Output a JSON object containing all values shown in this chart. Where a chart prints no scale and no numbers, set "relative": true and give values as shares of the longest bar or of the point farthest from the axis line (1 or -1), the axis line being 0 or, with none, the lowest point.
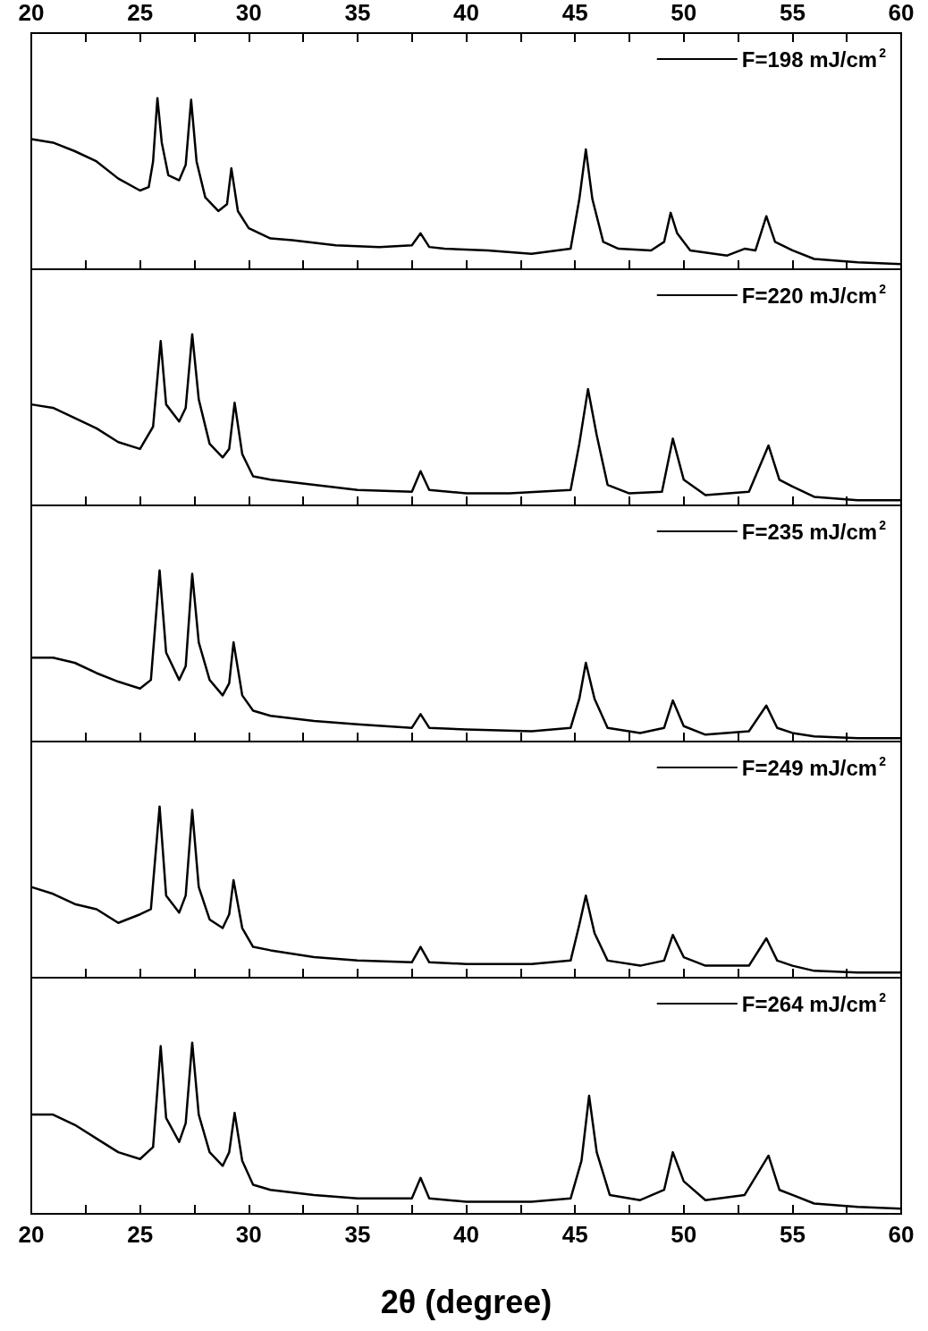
{
  "chart_data": [
    {
      "type": "line",
      "relative": true,
      "legend": "top right",
      "tick_labels": false,
      "xlim": [
        20,
        60
      ],
      "xticks": [
        20,
        {
          "value": 22.5,
          "label": null
        },
        25,
        {
          "value": 27.5,
          "label": null
        },
        30,
        {
          "value": 32.5,
          "label": null
        },
        35,
        {
          "value": 37.5,
          "label": null
        },
        40,
        {
          "value": 42.5,
          "label": null
        },
        45,
        {
          "value": 47.5,
          "label": null
        },
        50,
        {
          "value": 52.5,
          "label": null
        },
        55,
        {
          "value": 57.5,
          "label": null
        },
        60
      ],
      "x2lim": [
        20,
        60
      ],
      "x2ticks": [
        20,
        {
          "value": 22.5,
          "label": null
        },
        25,
        {
          "value": 27.5,
          "label": null
        },
        30,
        {
          "value": 32.5,
          "label": null
        },
        35,
        {
          "value": 37.5,
          "label": null
        },
        40,
        {
          "value": 42.5,
          "label": null
        },
        45,
        {
          "value": 47.5,
          "label": null
        },
        50,
        {
          "value": 52.5,
          "label": null
        },
        55,
        {
          "value": 57.5,
          "label": null
        },
        60
      ],
      "series": [
        {
          "name": "F=198 mJ/cm$^{2}$",
          "color": "#000000",
          "x": [
            20,
            21,
            22,
            23,
            24,
            25,
            25.4,
            25.6,
            25.8,
            26,
            26.3,
            26.8,
            27.1,
            27.35,
            27.6,
            28,
            28.6,
            29,
            29.2,
            29.5,
            30,
            31,
            32,
            34,
            36,
            37.5,
            37.9,
            38.3,
            39,
            41,
            43,
            44.8,
            45.2,
            45.5,
            45.8,
            46.3,
            47,
            48.5,
            49.1,
            49.4,
            49.7,
            50.3,
            52,
            52.8,
            53.3,
            53.8,
            54.2,
            55,
            56,
            58,
            60
          ],
          "values": [
            0.76,
            0.74,
            0.69,
            0.63,
            0.53,
            0.46,
            0.48,
            0.63,
            1.0,
            0.74,
            0.55,
            0.52,
            0.61,
            0.99,
            0.63,
            0.42,
            0.34,
            0.38,
            0.59,
            0.34,
            0.24,
            0.18,
            0.17,
            0.14,
            0.13,
            0.14,
            0.21,
            0.13,
            0.12,
            0.11,
            0.09,
            0.12,
            0.41,
            0.7,
            0.41,
            0.16,
            0.12,
            0.11,
            0.16,
            0.33,
            0.21,
            0.11,
            0.08,
            0.12,
            0.11,
            0.31,
            0.16,
            0.11,
            0.06,
            0.04,
            0.03
          ]
        }
      ]
    },
    {
      "type": "line",
      "relative": true,
      "legend": "top right",
      "tick_labels": false,
      "xlim": [
        20,
        60
      ],
      "xticks": [
        20,
        {
          "value": 22.5,
          "label": null
        },
        25,
        {
          "value": 27.5,
          "label": null
        },
        30,
        {
          "value": 32.5,
          "label": null
        },
        35,
        {
          "value": 37.5,
          "label": null
        },
        40,
        {
          "value": 42.5,
          "label": null
        },
        45,
        {
          "value": 47.5,
          "label": null
        },
        50,
        {
          "value": 52.5,
          "label": null
        },
        55,
        {
          "value": 57.5,
          "label": null
        },
        60
      ],
      "series": [
        {
          "name": "F=220 mJ/cm$^{2}$",
          "color": "#000000",
          "x": [
            20,
            21,
            22,
            23,
            24,
            25,
            25.6,
            25.95,
            26.2,
            26.8,
            27.1,
            27.4,
            27.7,
            28.2,
            28.8,
            29.1,
            29.35,
            29.7,
            30.2,
            31,
            33,
            35,
            37.5,
            37.9,
            38.3,
            40,
            42,
            44.8,
            45.2,
            45.6,
            46,
            46.5,
            47.5,
            49,
            49.5,
            50,
            51,
            53,
            53.9,
            54.4,
            55,
            56,
            58,
            60
          ],
          "values": [
            0.59,
            0.57,
            0.51,
            0.45,
            0.37,
            0.33,
            0.46,
            0.96,
            0.59,
            0.49,
            0.57,
            1.0,
            0.62,
            0.36,
            0.28,
            0.33,
            0.6,
            0.3,
            0.17,
            0.15,
            0.12,
            0.09,
            0.08,
            0.2,
            0.09,
            0.07,
            0.07,
            0.09,
            0.36,
            0.68,
            0.41,
            0.12,
            0.07,
            0.08,
            0.39,
            0.15,
            0.06,
            0.08,
            0.35,
            0.15,
            0.11,
            0.05,
            0.03,
            0.03
          ]
        }
      ]
    },
    {
      "type": "line",
      "relative": true,
      "legend": "top right",
      "tick_labels": false,
      "xlim": [
        20,
        60
      ],
      "xticks": [
        20,
        {
          "value": 22.5,
          "label": null
        },
        25,
        {
          "value": 27.5,
          "label": null
        },
        30,
        {
          "value": 32.5,
          "label": null
        },
        35,
        {
          "value": 37.5,
          "label": null
        },
        40,
        {
          "value": 42.5,
          "label": null
        },
        45,
        {
          "value": 47.5,
          "label": null
        },
        50,
        {
          "value": 52.5,
          "label": null
        },
        55,
        {
          "value": 57.5,
          "label": null
        },
        60
      ],
      "series": [
        {
          "name": "F=235 mJ/cm$^{2}$",
          "color": "#000000",
          "x": [
            20,
            21,
            22,
            23,
            24,
            25,
            25.5,
            25.9,
            26.2,
            26.8,
            27.1,
            27.4,
            27.7,
            28.2,
            28.8,
            29.1,
            29.3,
            29.7,
            30.2,
            31,
            33,
            35,
            37.5,
            37.9,
            38.3,
            40,
            43,
            44.8,
            45.2,
            45.5,
            45.9,
            46.5,
            48,
            49.1,
            49.5,
            50,
            51,
            53,
            53.8,
            54.3,
            55,
            56,
            58,
            60
          ],
          "values": [
            0.49,
            0.49,
            0.46,
            0.4,
            0.35,
            0.31,
            0.36,
            1.0,
            0.52,
            0.36,
            0.44,
            0.98,
            0.58,
            0.36,
            0.27,
            0.34,
            0.58,
            0.27,
            0.18,
            0.15,
            0.12,
            0.1,
            0.08,
            0.16,
            0.08,
            0.07,
            0.06,
            0.08,
            0.25,
            0.46,
            0.25,
            0.08,
            0.05,
            0.08,
            0.24,
            0.09,
            0.04,
            0.06,
            0.21,
            0.08,
            0.05,
            0.03,
            0.02,
            0.02
          ]
        }
      ]
    },
    {
      "type": "line",
      "relative": true,
      "legend": "top right",
      "tick_labels": false,
      "xlim": [
        20,
        60
      ],
      "xticks": [
        20,
        {
          "value": 22.5,
          "label": null
        },
        25,
        {
          "value": 27.5,
          "label": null
        },
        30,
        {
          "value": 32.5,
          "label": null
        },
        35,
        {
          "value": 37.5,
          "label": null
        },
        40,
        {
          "value": 42.5,
          "label": null
        },
        45,
        {
          "value": 47.5,
          "label": null
        },
        50,
        {
          "value": 52.5,
          "label": null
        },
        55,
        {
          "value": 57.5,
          "label": null
        },
        60
      ],
      "series": [
        {
          "name": "F=249 mJ/cm$^{2}$",
          "color": "#000000",
          "x": [
            20,
            21,
            22,
            23,
            24,
            25,
            25.5,
            25.9,
            26.2,
            26.8,
            27.1,
            27.4,
            27.7,
            28.2,
            28.8,
            29.1,
            29.3,
            29.7,
            30.2,
            31,
            33,
            35,
            37.5,
            37.9,
            38.3,
            40,
            43,
            44.8,
            45.2,
            45.5,
            45.9,
            46.5,
            48,
            49.1,
            49.5,
            50,
            51,
            53,
            53.8,
            54.3,
            55,
            56,
            58,
            60
          ],
          "values": [
            0.53,
            0.49,
            0.43,
            0.4,
            0.32,
            0.37,
            0.4,
            1.0,
            0.48,
            0.38,
            0.48,
            0.98,
            0.53,
            0.34,
            0.29,
            0.37,
            0.57,
            0.29,
            0.18,
            0.16,
            0.12,
            0.1,
            0.09,
            0.18,
            0.09,
            0.08,
            0.08,
            0.1,
            0.31,
            0.48,
            0.26,
            0.1,
            0.07,
            0.1,
            0.25,
            0.12,
            0.07,
            0.07,
            0.23,
            0.1,
            0.07,
            0.04,
            0.03,
            0.03
          ]
        }
      ]
    },
    {
      "type": "line",
      "relative": true,
      "legend": "top right",
      "xlabel": "2θ (degree)",
      "xlim": [
        20,
        60
      ],
      "xticks": [
        20,
        {
          "value": 22.5,
          "label": null
        },
        25,
        {
          "value": 27.5,
          "label": null
        },
        30,
        {
          "value": 32.5,
          "label": null
        },
        35,
        {
          "value": 37.5,
          "label": null
        },
        40,
        {
          "value": 42.5,
          "label": null
        },
        45,
        {
          "value": 47.5,
          "label": null
        },
        50,
        {
          "value": 52.5,
          "label": null
        },
        55,
        {
          "value": 57.5,
          "label": null
        },
        60
      ],
      "series": [
        {
          "name": "F=264 mJ/cm$^{2}$",
          "color": "#000000",
          "x": [
            20,
            21,
            22,
            23,
            24,
            25,
            25.6,
            25.95,
            26.2,
            26.8,
            27.1,
            27.4,
            27.7,
            28.2,
            28.8,
            29.1,
            29.35,
            29.7,
            30.2,
            31,
            33,
            35,
            37.5,
            37.9,
            38.3,
            40,
            43,
            44.8,
            45.3,
            45.65,
            46,
            46.6,
            48,
            49.1,
            49.5,
            50,
            51,
            52.8,
            53.9,
            54.4,
            55,
            56,
            58,
            60
          ],
          "values": [
            0.58,
            0.58,
            0.52,
            0.44,
            0.36,
            0.32,
            0.39,
            0.98,
            0.56,
            0.42,
            0.53,
            1.0,
            0.58,
            0.36,
            0.28,
            0.36,
            0.59,
            0.31,
            0.17,
            0.14,
            0.11,
            0.09,
            0.09,
            0.21,
            0.09,
            0.07,
            0.07,
            0.09,
            0.31,
            0.69,
            0.36,
            0.11,
            0.08,
            0.14,
            0.36,
            0.19,
            0.08,
            0.11,
            0.34,
            0.14,
            0.11,
            0.06,
            0.04,
            0.03
          ]
        }
      ]
    }
  ]
}
